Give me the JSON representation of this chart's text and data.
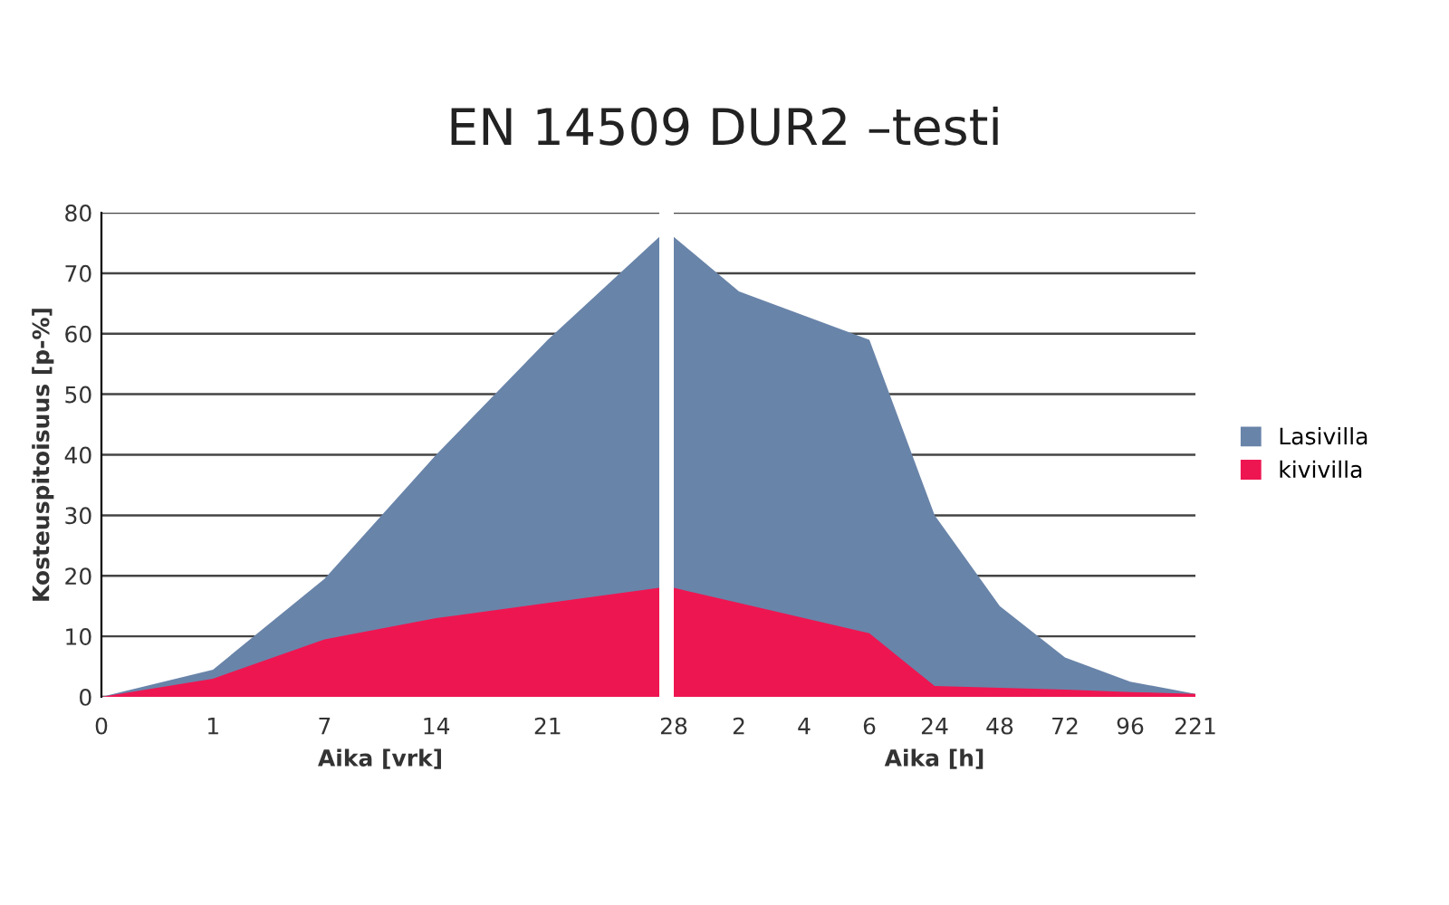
{
  "chart_data": [
    {
      "type": "area",
      "title": "EN 14509 DUR2 –testi",
      "xlabel": "Aika [vrk]",
      "ylabel": "Kosteuspitoisuus [p-%]",
      "categories": [
        "0",
        "1",
        "7",
        "14",
        "21",
        null
      ],
      "series": [
        {
          "color": "#6984a9",
          "values": [
            0,
            4.5,
            19.5,
            40,
            59,
            76
          ]
        },
        {
          "color": "#ee1651",
          "values": [
            0,
            3,
            9.5,
            13,
            15.5,
            18
          ]
        }
      ],
      "ylim": [
        0,
        80
      ],
      "yticks": [
        0,
        10,
        20,
        30,
        40,
        50,
        60,
        70,
        80
      ],
      "grid": "y"
    },
    {
      "type": "area",
      "xlabel": "Aika [h]",
      "categories": [
        "28",
        "2",
        "4",
        "6",
        "24",
        "48",
        "72",
        "96",
        "221"
      ],
      "series": [
        {
          "name": "Lasivilla",
          "color": "#6984a9",
          "values": [
            76,
            67,
            63,
            59,
            30,
            15,
            6.5,
            2.5,
            0.5
          ]
        },
        {
          "name": "kivivilla",
          "color": "#ee1651",
          "values": [
            18,
            15.5,
            13,
            10.5,
            1.8,
            1.5,
            1.2,
            0.8,
            0.5
          ]
        }
      ],
      "ylim": [
        0,
        80
      ],
      "yticks": [
        0,
        10,
        20,
        30,
        40,
        50,
        60,
        70,
        80
      ],
      "grid": "y",
      "legend": "right",
      "tick_labels": "x"
    }
  ]
}
